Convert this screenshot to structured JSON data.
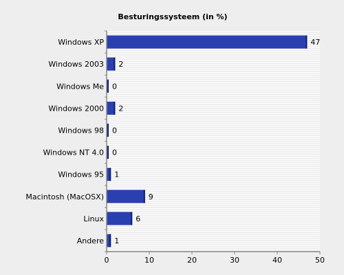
{
  "chart_data": {
    "type": "bar",
    "orientation": "horizontal",
    "title": "Besturingssysteem (in %)",
    "xlabel": "",
    "ylabel": "",
    "categories": [
      "Windows XP",
      "Windows 2003",
      "Windows Me",
      "Windows 2000",
      "Windows 98",
      "Windows NT 4.0",
      "Windows 95",
      "Macintosh (MacOSX)",
      "Linux",
      "Andere"
    ],
    "values": [
      47,
      2,
      0,
      2,
      0,
      0,
      1,
      9,
      6,
      1
    ],
    "xlim": [
      0,
      50
    ],
    "xticks": [
      0,
      10,
      20,
      30,
      40,
      50
    ],
    "grid": "horizontal-stripes",
    "bar_color": "#2a3fb0",
    "bar_edge_color": "#14206a",
    "plot_background": "#ffffff",
    "grid_color": "#dcdcdc"
  }
}
